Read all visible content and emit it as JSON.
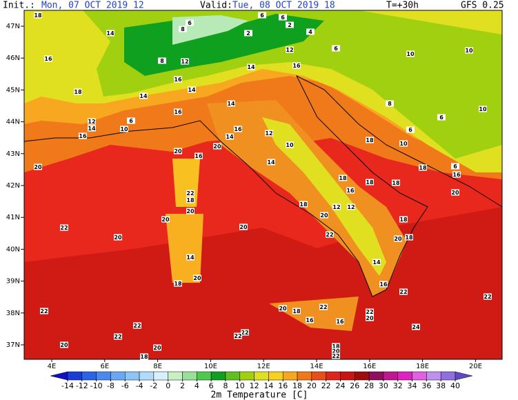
{
  "header": {
    "init_label": "Init.:",
    "init": "Mon, 07 OCT 2019  12",
    "valid_label": "Valid:",
    "valid": "Tue, 08 OCT 2019  18",
    "lead": "T=+30h",
    "model": "GFS 0.25"
  },
  "lat_labels": [
    "47N",
    "46N",
    "45N",
    "44N",
    "43N",
    "42N",
    "41N",
    "40N",
    "39N",
    "38N",
    "37N"
  ],
  "lon_labels": [
    "4E",
    "6E",
    "8E",
    "10E",
    "12E",
    "14E",
    "16E",
    "18E",
    "20E"
  ],
  "map_values": [
    18,
    14,
    8,
    6,
    2,
    2,
    6,
    4,
    6,
    12,
    6,
    10,
    10,
    16,
    8,
    12,
    14,
    16,
    18,
    14,
    14,
    16,
    14,
    8,
    10,
    6,
    6,
    12,
    10,
    14,
    16,
    16,
    12,
    16,
    10,
    6,
    18,
    10,
    20,
    20,
    14,
    16,
    20,
    14,
    18,
    16,
    18,
    18,
    18,
    6,
    16,
    22,
    18,
    20,
    18,
    12,
    12,
    20,
    20,
    20,
    20,
    22,
    20,
    18,
    22,
    20,
    18,
    14,
    14,
    16,
    18,
    20,
    22,
    22,
    22,
    20,
    18,
    22,
    22,
    20,
    16,
    16,
    22,
    22,
    22,
    22,
    24,
    20,
    20,
    18,
    18,
    20,
    22
  ],
  "colorbar": {
    "title": "2m Temperature [C]",
    "ticks": [
      -14,
      -12,
      -10,
      -8,
      -6,
      -4,
      -2,
      0,
      2,
      4,
      6,
      8,
      10,
      12,
      14,
      16,
      18,
      20,
      22,
      24,
      26,
      28,
      30,
      32,
      34,
      36,
      38,
      40
    ],
    "colors": [
      "#1010c8",
      "#1a3cd8",
      "#2a64e8",
      "#4a8af0",
      "#6aa8f4",
      "#8cc4f8",
      "#b0dcfa",
      "#d8f0fc",
      "#c8f0c0",
      "#98e098",
      "#50c850",
      "#10a020",
      "#60c020",
      "#a0d010",
      "#e0e020",
      "#f8d020",
      "#f8a820",
      "#f07818",
      "#e85018",
      "#e0241c",
      "#c81412",
      "#a00c0c",
      "#901060",
      "#c01890",
      "#e020c0",
      "#e060e0",
      "#c090f0",
      "#9070e0",
      "#6048c8"
    ]
  }
}
